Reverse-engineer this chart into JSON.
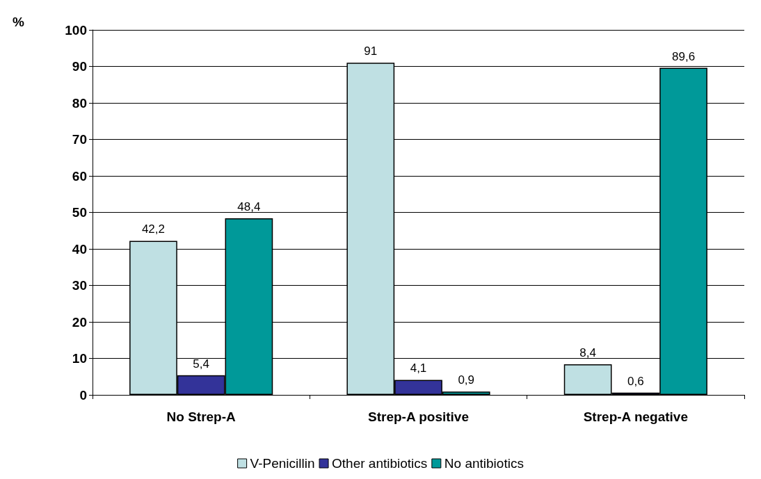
{
  "chart_data": {
    "type": "bar",
    "ylabel": "%",
    "categories": [
      "No Strep-A",
      "Strep-A positive",
      "Strep-A negative"
    ],
    "series": [
      {
        "name": "V-Penicillin",
        "color": "#bfe0e3",
        "values": [
          42.2,
          91,
          8.4
        ],
        "value_labels": [
          "42,2",
          "91",
          "8,4"
        ]
      },
      {
        "name": "Other antibiotics",
        "color": "#333399",
        "values": [
          5.4,
          4.1,
          0.6
        ],
        "value_labels": [
          "5,4",
          "4,1",
          "0,6"
        ]
      },
      {
        "name": "No antibiotics",
        "color": "#009999",
        "values": [
          48.4,
          0.9,
          89.6
        ],
        "value_labels": [
          "48,4",
          "0,9",
          "89,6"
        ]
      }
    ],
    "ylim": [
      0,
      100
    ],
    "yticks": [
      0,
      10,
      20,
      30,
      40,
      50,
      60,
      70,
      80,
      90,
      100
    ],
    "grid": "y",
    "legend": "bottom"
  }
}
